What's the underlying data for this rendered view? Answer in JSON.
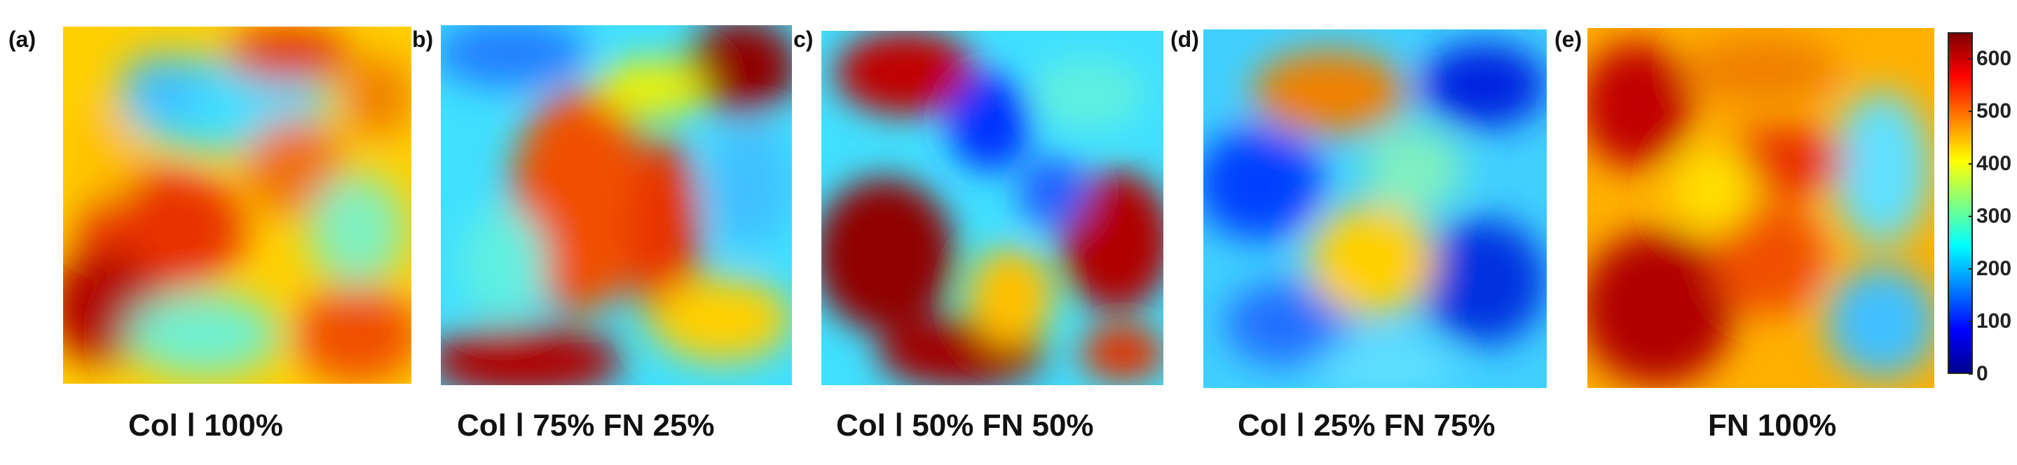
{
  "panels": [
    {
      "label": "(a)",
      "caption": "Col Ⅰ 100%"
    },
    {
      "label": "b)",
      "caption": "Col Ⅰ 75% FN 25%"
    },
    {
      "label": "c)",
      "caption": "Col Ⅰ 50% FN 50%"
    },
    {
      "label": "(d)",
      "caption": "Col Ⅰ 25% FN 75%"
    },
    {
      "label": "(e)",
      "caption": "FN 100%"
    }
  ],
  "colorbar": {
    "ticks": [
      "600",
      "500",
      "400",
      "300",
      "200",
      "100",
      "0"
    ],
    "min": 0,
    "max": 650,
    "colormap": "jet"
  }
}
